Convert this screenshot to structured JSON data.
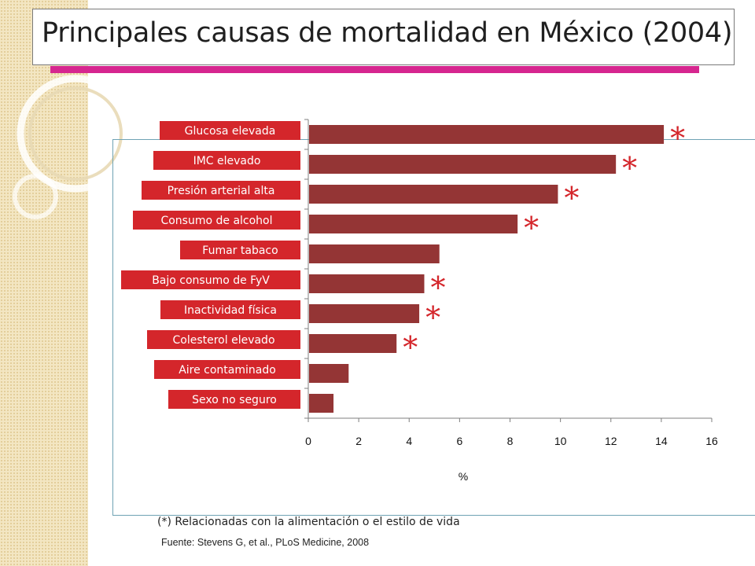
{
  "slide": {
    "title": "Principales causas de mortalidad en México (2004)",
    "footnote": "(*) Relacionadas con la alimentación o el estilo de vida",
    "source": "Fuente: Stevens G, et al., PLoS Medicine, 2008"
  },
  "colors": {
    "bar": "#943535",
    "label_box": "#d4262b",
    "asterisk": "#d4262b",
    "title_underline": "#d6268f",
    "frame": "#6fa3b4"
  },
  "chart_data": {
    "type": "bar",
    "orientation": "horizontal",
    "categories": [
      "Glucosa elevada",
      "IMC elevado",
      "Presión arterial alta",
      "Consumo de alcohol",
      "Fumar tabaco",
      "Bajo consumo de FyV",
      "Inactividad física",
      "Colesterol elevado",
      "Aire contaminado",
      "Sexo no seguro"
    ],
    "values": [
      14.1,
      12.2,
      9.9,
      8.3,
      5.2,
      4.6,
      4.4,
      3.5,
      1.6,
      1.0
    ],
    "marked": [
      true,
      true,
      true,
      true,
      false,
      true,
      true,
      true,
      false,
      false
    ],
    "marker_symbol": "*",
    "xlabel": "%",
    "xlim": [
      0,
      16
    ],
    "xticks": [
      "0",
      "2",
      "4",
      "6",
      "8",
      "10",
      "12",
      "14",
      "16"
    ],
    "grid": false
  }
}
